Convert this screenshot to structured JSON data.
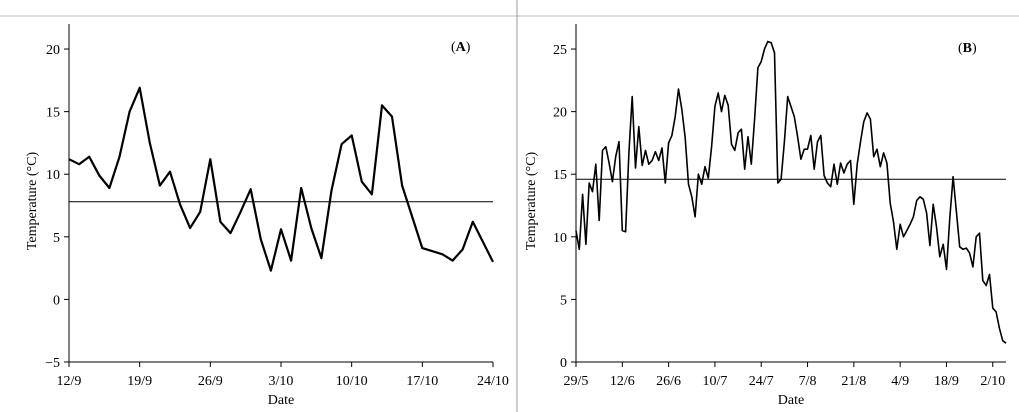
{
  "chart_data": [
    {
      "type": "line",
      "panel_label_open": "(",
      "panel_label_letter": "A",
      "panel_label_close": ")",
      "xlabel": "Date",
      "ylabel": "Temperature (°C)",
      "ylim": [
        -5,
        22
      ],
      "yticks": [
        -5,
        0,
        5,
        10,
        15,
        20
      ],
      "ytick_labels": [
        "−5",
        "0",
        "5",
        "10",
        "15",
        "20"
      ],
      "xlim_day": [
        0,
        42
      ],
      "xtick_days": [
        0,
        7,
        14,
        21,
        28,
        35,
        42
      ],
      "xtick_labels": [
        "12/9",
        "19/9",
        "26/9",
        "3/10",
        "10/10",
        "17/10",
        "24/10"
      ],
      "reference_line": 7.8,
      "series": [
        {
          "x_day": [
            0,
            1,
            2,
            3,
            4,
            5,
            6,
            7,
            8,
            9,
            10,
            11,
            12,
            13,
            14,
            15,
            16,
            17,
            18,
            19,
            20,
            21,
            22,
            23,
            24,
            25,
            26,
            27,
            28,
            29,
            30,
            31,
            32,
            33,
            35,
            37,
            38,
            39,
            40,
            42
          ],
          "values": [
            11.2,
            10.8,
            11.4,
            9.9,
            8.9,
            11.4,
            15.0,
            16.9,
            12.5,
            9.1,
            10.2,
            7.6,
            5.7,
            7.0,
            11.2,
            6.2,
            5.3,
            7.0,
            8.8,
            4.8,
            2.3,
            5.6,
            3.1,
            8.9,
            5.7,
            3.3,
            8.7,
            12.4,
            13.1,
            9.4,
            8.4,
            15.5,
            14.6,
            9.1,
            4.1,
            3.6,
            3.1,
            4.0,
            6.2,
            3.0
          ]
        }
      ]
    },
    {
      "type": "line",
      "panel_label_open": "(",
      "panel_label_letter": "B",
      "panel_label_close": ")",
      "xlabel": "Date",
      "ylabel": "Temperature (°C)",
      "ylim": [
        0,
        27
      ],
      "yticks": [
        0,
        5,
        10,
        15,
        20,
        25
      ],
      "ytick_labels": [
        "0",
        "5",
        "10",
        "15",
        "20",
        "25"
      ],
      "xlim_day": [
        0,
        130
      ],
      "xtick_days": [
        0,
        14,
        28,
        42,
        56,
        70,
        84,
        98,
        112,
        126
      ],
      "xtick_labels": [
        "29/5",
        "12/6",
        "26/6",
        "10/7",
        "24/7",
        "7/8",
        "21/8",
        "4/9",
        "18/9",
        "2/10"
      ],
      "reference_line": 14.6,
      "series": [
        {
          "x_day": [
            0,
            1,
            2,
            3,
            4,
            5,
            6,
            7,
            8,
            9,
            10,
            11,
            12,
            13,
            14,
            15,
            16,
            17,
            18,
            19,
            20,
            21,
            22,
            23,
            24,
            25,
            26,
            27,
            28,
            29,
            30,
            31,
            32,
            33,
            34,
            35,
            36,
            37,
            38,
            39,
            40,
            41,
            42,
            43,
            44,
            45,
            46,
            47,
            48,
            49,
            50,
            51,
            52,
            53,
            54,
            55,
            56,
            57,
            58,
            59,
            60,
            61,
            62,
            63,
            64,
            65,
            66,
            67,
            68,
            69,
            70,
            71,
            72,
            73,
            74,
            75,
            76,
            77,
            78,
            79,
            80,
            81,
            82,
            83,
            84,
            85,
            86,
            87,
            88,
            89,
            90,
            91,
            92,
            93,
            94,
            95,
            96,
            97,
            98,
            99,
            100,
            101,
            102,
            103,
            104,
            105,
            106,
            107,
            108,
            109,
            110,
            111,
            112,
            113,
            114,
            115,
            116,
            117,
            118,
            119,
            120,
            121,
            122,
            123,
            124,
            125,
            126,
            127,
            128,
            129,
            130
          ],
          "values": [
            10.5,
            9.0,
            13.4,
            9.4,
            14.3,
            13.6,
            15.8,
            11.3,
            16.9,
            17.2,
            15.9,
            14.4,
            16.4,
            17.6,
            10.5,
            10.4,
            16.7,
            21.2,
            15.5,
            18.8,
            15.7,
            16.9,
            15.8,
            16.1,
            16.8,
            16.1,
            17.1,
            14.3,
            17.5,
            18.1,
            19.6,
            21.8,
            20.2,
            17.9,
            14.2,
            13.2,
            11.6,
            15.0,
            14.2,
            15.6,
            14.7,
            17.2,
            20.4,
            21.5,
            20.0,
            21.3,
            20.5,
            17.4,
            16.9,
            18.3,
            18.6,
            15.4,
            18.0,
            15.8,
            19.4,
            23.5,
            24.0,
            25.0,
            25.6,
            25.5,
            24.7,
            14.3,
            14.6,
            17.6,
            21.2,
            20.4,
            19.6,
            18.0,
            16.2,
            17.0,
            17.0,
            18.1,
            15.4,
            17.6,
            18.1,
            14.9,
            14.3,
            14.0,
            15.8,
            14.2,
            15.9,
            15.1,
            15.8,
            16.1,
            12.6,
            15.8,
            17.6,
            19.2,
            19.9,
            19.4,
            16.4,
            17.0,
            15.6,
            16.7,
            15.9,
            12.7,
            11.2,
            9.0,
            11.0,
            10.0,
            10.5,
            11.0,
            11.6,
            12.9,
            13.2,
            13.0,
            11.9,
            9.3,
            12.6,
            10.8,
            8.4,
            9.4,
            7.4,
            11.5,
            14.8,
            12.0,
            9.2,
            9.0,
            9.1,
            8.7,
            7.6,
            10.0,
            10.3,
            6.5,
            6.1,
            7.0,
            4.3,
            4.0,
            2.7,
            1.7,
            1.5
          ]
        }
      ]
    }
  ]
}
